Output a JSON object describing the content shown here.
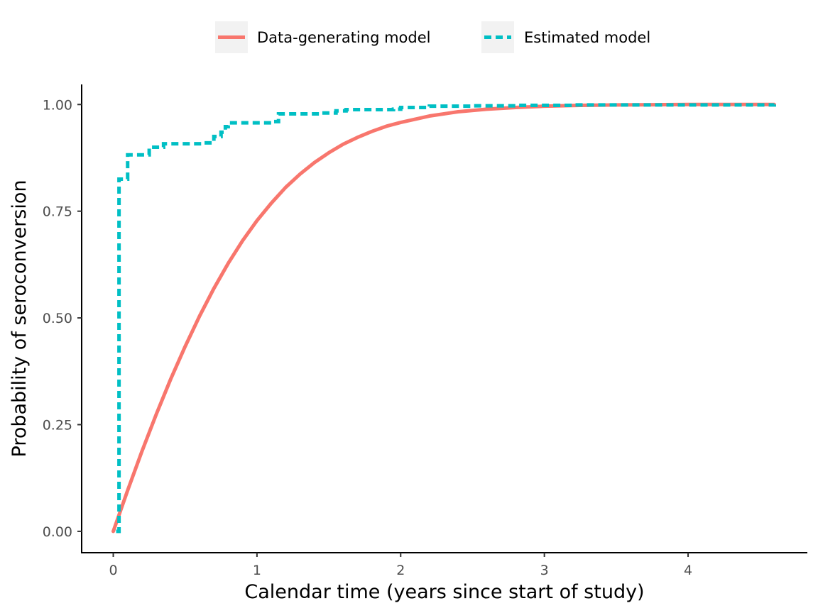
{
  "chart_data": {
    "type": "line",
    "xlabel": "Calendar time (years since start of study)",
    "ylabel": "Probability of seroconversion",
    "xlim": [
      -0.22,
      4.83
    ],
    "ylim": [
      -0.05,
      1.047
    ],
    "x_ticks": [
      0,
      1,
      2,
      3,
      4
    ],
    "x_tick_labels": [
      "0",
      "1",
      "2",
      "3",
      "4"
    ],
    "y_ticks": [
      0,
      0.25,
      0.5,
      0.75,
      1.0
    ],
    "y_tick_labels": [
      "0.00",
      "0.25",
      "0.50",
      "0.75",
      "1.00"
    ],
    "grid": false,
    "legend_position": "top",
    "series": [
      {
        "name": "Data-generating model",
        "color": "#F8766D",
        "style": "solid",
        "x": [
          0,
          0.1,
          0.2,
          0.3,
          0.4,
          0.5,
          0.6,
          0.7,
          0.8,
          0.9,
          1.0,
          1.1,
          1.2,
          1.3,
          1.4,
          1.5,
          1.6,
          1.7,
          1.8,
          1.9,
          2.0,
          2.2,
          2.4,
          2.6,
          2.8,
          3.0,
          3.25,
          3.5,
          3.75,
          4.0,
          4.3,
          4.6
        ],
        "y": [
          0,
          0.096,
          0.188,
          0.275,
          0.357,
          0.433,
          0.504,
          0.569,
          0.628,
          0.681,
          0.728,
          0.769,
          0.806,
          0.837,
          0.864,
          0.887,
          0.907,
          0.923,
          0.937,
          0.949,
          0.958,
          0.973,
          0.983,
          0.989,
          0.993,
          0.996,
          0.998,
          0.999,
          0.9995,
          1.0,
          1.0,
          1.0
        ]
      },
      {
        "name": "Estimated model",
        "color": "#00BFC4",
        "style": "dashed",
        "step": true,
        "x": [
          0.02,
          0.04,
          0.1,
          0.25,
          0.35,
          0.62,
          0.7,
          0.75,
          0.78,
          0.8,
          1.1,
          1.15,
          1.45,
          1.55,
          1.62,
          1.95,
          2.0,
          2.2,
          2.5,
          2.8,
          3.2,
          4.6
        ],
        "y": [
          0.0,
          0.825,
          0.882,
          0.9,
          0.908,
          0.91,
          0.925,
          0.935,
          0.948,
          0.957,
          0.96,
          0.978,
          0.98,
          0.985,
          0.988,
          0.989,
          0.993,
          0.996,
          0.997,
          0.998,
          0.999,
          1.0
        ]
      }
    ]
  }
}
